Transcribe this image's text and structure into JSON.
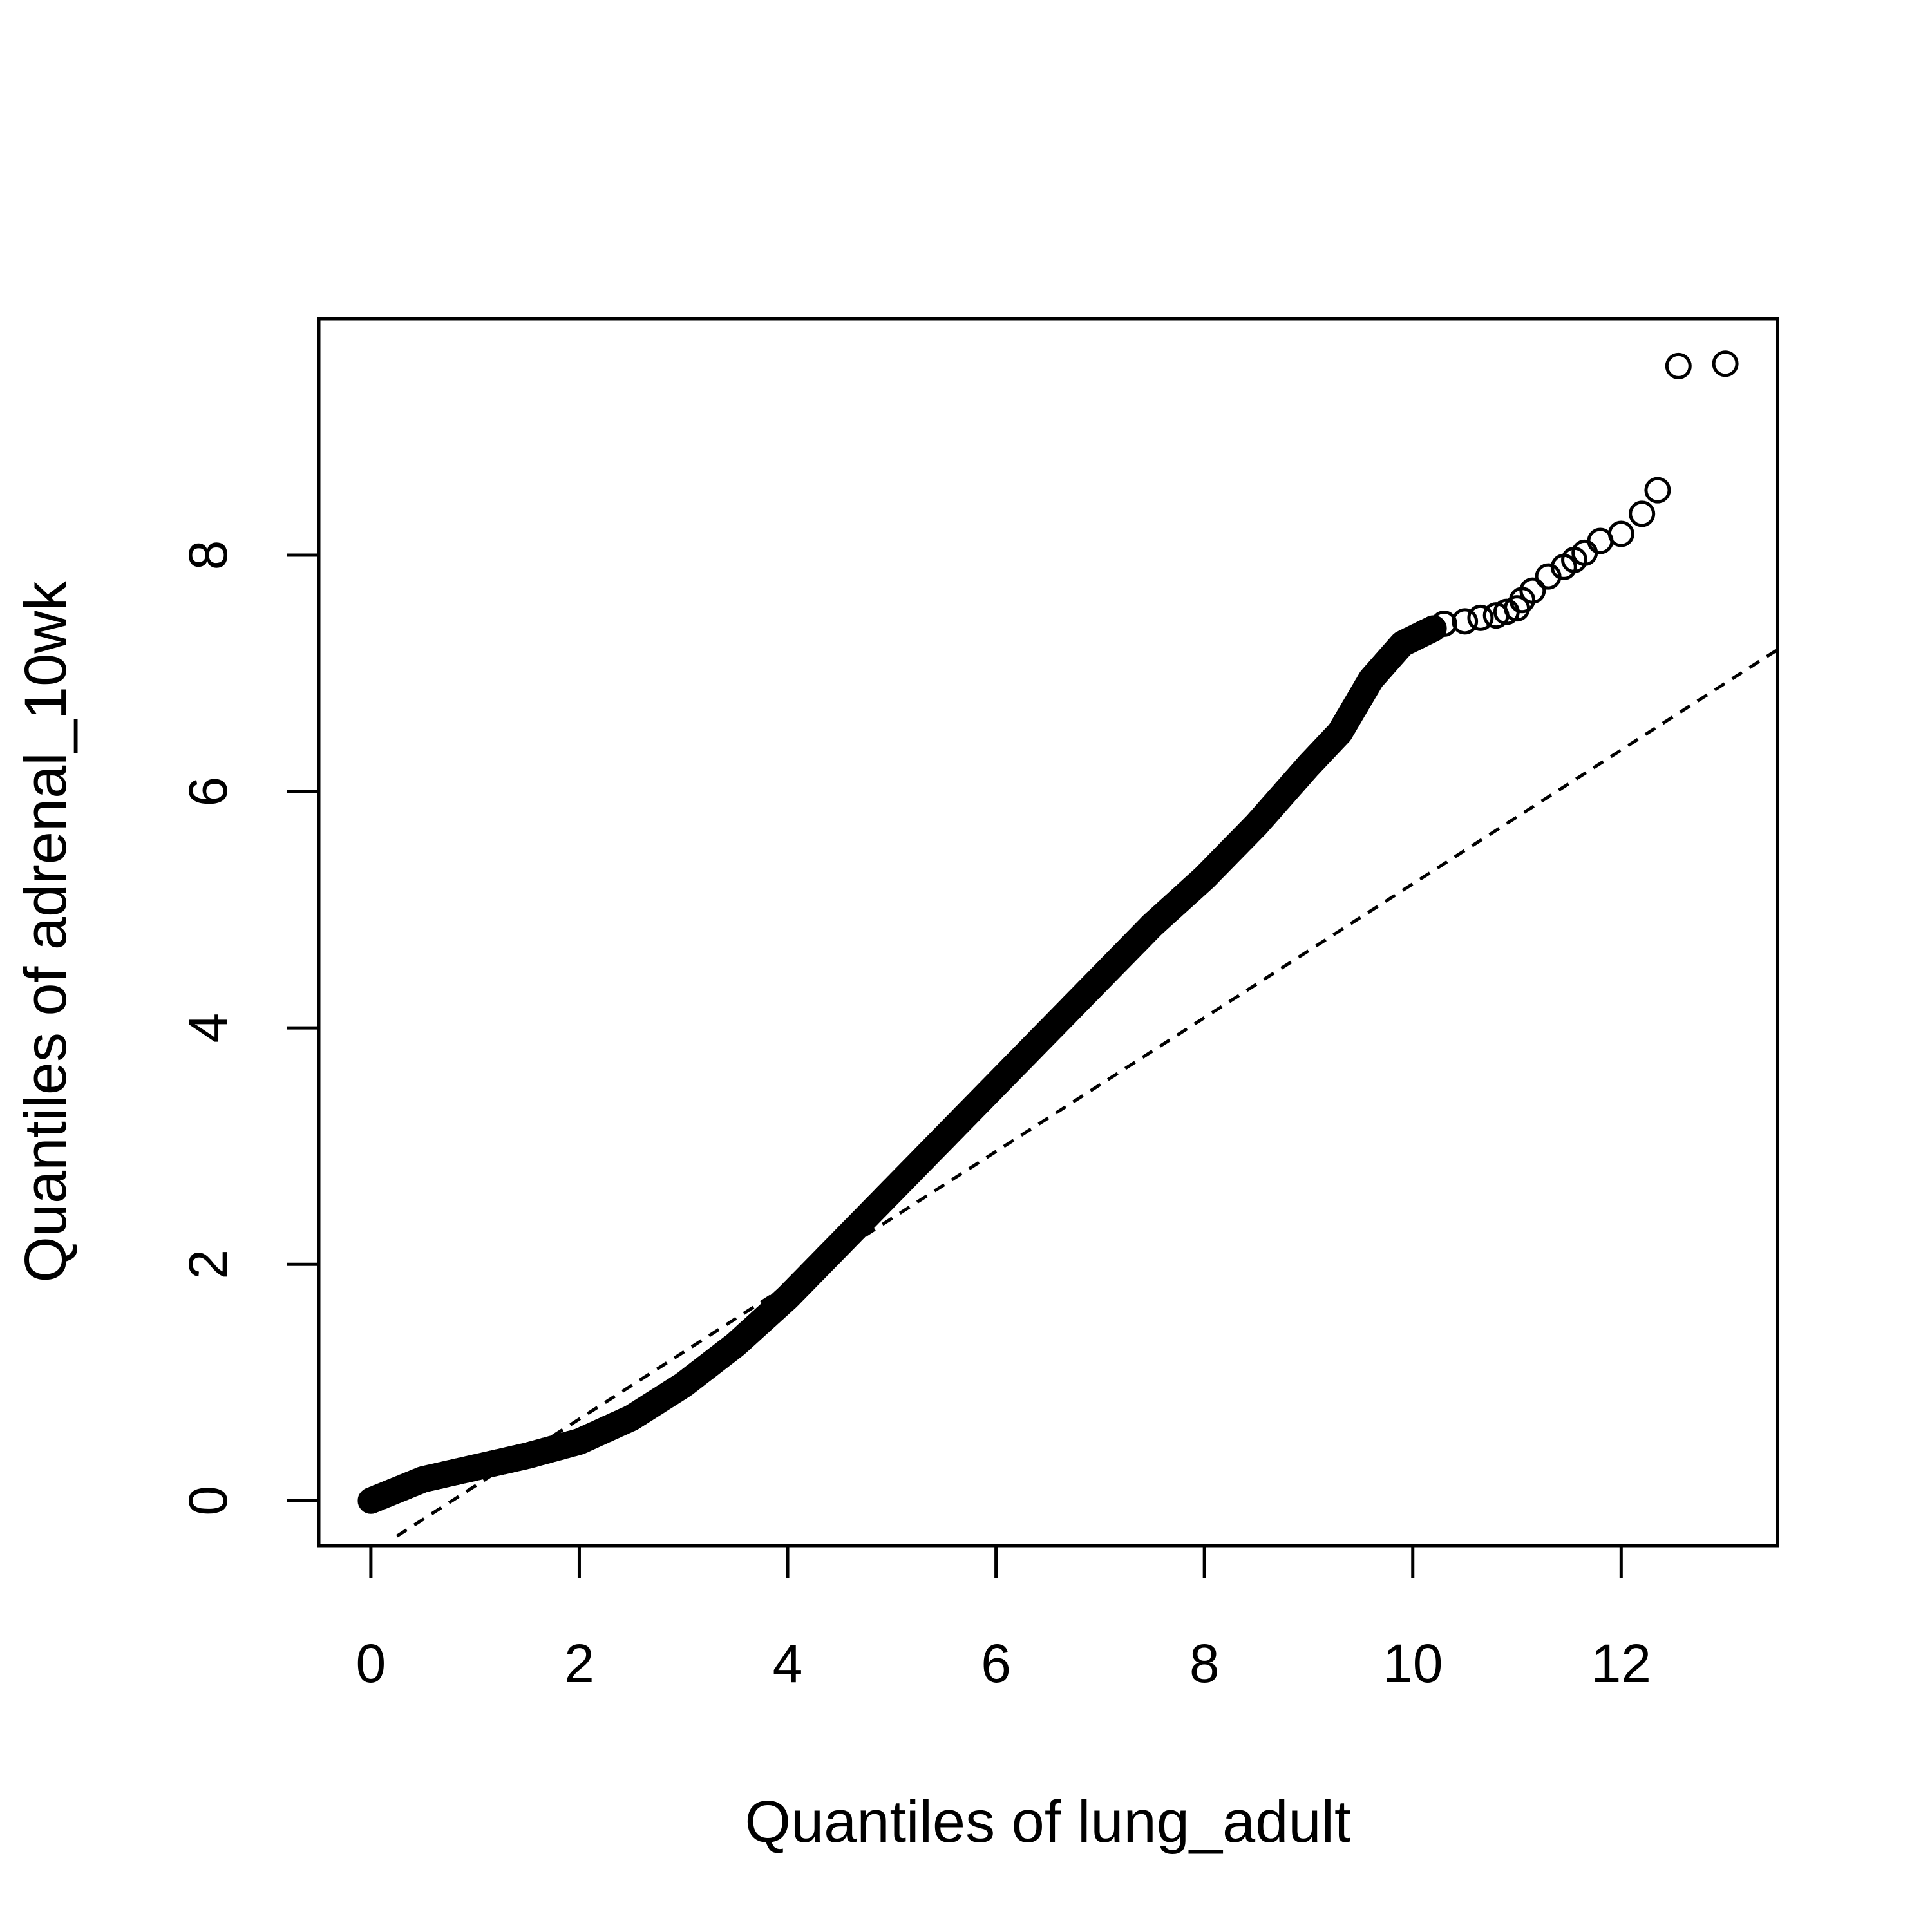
{
  "chart_data": {
    "type": "scatter",
    "title": "",
    "xlabel": "Quantiles of lung_adult",
    "ylabel": "Quantiles of adrenal_10wk",
    "xlim": [
      -0.5,
      13.5
    ],
    "ylim": [
      -0.38,
      10.0
    ],
    "xticks": [
      "0",
      "2",
      "4",
      "6",
      "8",
      "10",
      "12"
    ],
    "yticks": [
      "0",
      "2",
      "4",
      "6",
      "8"
    ],
    "grid": false,
    "legend": "none",
    "marker": "open-circle",
    "reference_line": {
      "style": "dashed",
      "x": [
        0.25,
        13.5
      ],
      "y": [
        -0.3,
        7.2
      ]
    },
    "curve_points": {
      "x": [
        0,
        0.5,
        1,
        1.5,
        2,
        2.5,
        3,
        3.5,
        4,
        4.5,
        5,
        5.5,
        6,
        6.5,
        7,
        7.5,
        8,
        8.5,
        9,
        9.3,
        9.6,
        9.9,
        10.2
      ],
      "y": [
        0,
        0.18,
        0.28,
        0.38,
        0.5,
        0.7,
        0.98,
        1.32,
        1.72,
        2.17,
        2.62,
        3.07,
        3.52,
        3.97,
        4.42,
        4.87,
        5.27,
        5.72,
        6.22,
        6.5,
        6.95,
        7.25,
        7.38
      ]
    },
    "tail_points": {
      "x": [
        10.3,
        10.5,
        10.65,
        10.8,
        10.9,
        11.0,
        11.05,
        11.15,
        11.3,
        11.45,
        11.55,
        11.65,
        11.8,
        12.0,
        12.2,
        12.35,
        12.55,
        13.0
      ],
      "y": [
        7.42,
        7.44,
        7.47,
        7.49,
        7.52,
        7.55,
        7.62,
        7.7,
        7.82,
        7.9,
        7.96,
        8.02,
        8.12,
        8.18,
        8.35,
        8.55,
        9.6,
        9.62
      ]
    }
  }
}
